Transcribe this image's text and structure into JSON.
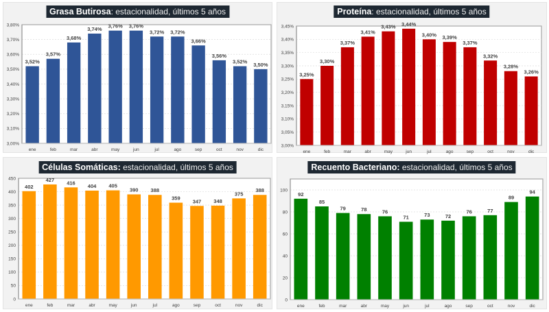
{
  "page": {
    "background": "#ffffff",
    "panel_background": "#f2f2f2",
    "title_background": "#1e2832"
  },
  "chart_data": [
    {
      "id": "grasa",
      "type": "bar",
      "title_bold": "Grasa Butirosa",
      "title_rest": ": estacionalidad, últimos 5 años",
      "categories": [
        "ene",
        "feb",
        "mar",
        "abr",
        "may",
        "jun",
        "jul",
        "ago",
        "sep",
        "oct",
        "nov",
        "dic"
      ],
      "values": [
        3.52,
        3.57,
        3.68,
        3.74,
        3.76,
        3.76,
        3.72,
        3.72,
        3.66,
        3.56,
        3.52,
        3.5
      ],
      "labels": [
        "3,52%",
        "3,57%",
        "3,68%",
        "3,74%",
        "3,76%",
        "3,76%",
        "3,72%",
        "3,72%",
        "3,66%",
        "3,56%",
        "3,52%",
        "3,50%"
      ],
      "yticks": [
        3.0,
        3.1,
        3.2,
        3.3,
        3.4,
        3.5,
        3.6,
        3.7,
        3.8
      ],
      "ytick_labels": [
        "3,00%",
        "3,10%",
        "3,20%",
        "3,30%",
        "3,40%",
        "3,50%",
        "3,60%",
        "3,70%",
        "3,80%"
      ],
      "ylim": [
        3.0,
        3.8
      ],
      "color": "#2f5597",
      "xlabel": "",
      "ylabel": "",
      "grid": true,
      "legend": "none"
    },
    {
      "id": "proteina",
      "type": "bar",
      "title_bold": "Proteína",
      "title_rest": ": estacionalidad, últimos 5 años",
      "categories": [
        "ene",
        "feb",
        "mar",
        "abr",
        "may",
        "jun",
        "jul",
        "ago",
        "sep",
        "oct",
        "nov",
        "dic"
      ],
      "values": [
        3.25,
        3.3,
        3.37,
        3.41,
        3.43,
        3.44,
        3.4,
        3.39,
        3.37,
        3.32,
        3.28,
        3.26
      ],
      "labels": [
        "3,25%",
        "3,30%",
        "3,37%",
        "3,41%",
        "3,43%",
        "3,44%",
        "3,40%",
        "3,39%",
        "3,37%",
        "3,32%",
        "3,28%",
        "3,26%"
      ],
      "yticks": [
        3.0,
        3.05,
        3.1,
        3.15,
        3.2,
        3.25,
        3.3,
        3.35,
        3.4,
        3.45
      ],
      "ytick_labels": [
        "3,00%",
        "3,05%",
        "3,10%",
        "3,15%",
        "3,20%",
        "3,25%",
        "3,30%",
        "3,35%",
        "3,40%",
        "3,45%"
      ],
      "ylim": [
        3.0,
        3.45
      ],
      "color": "#c00000",
      "xlabel": "",
      "ylabel": "",
      "grid": true,
      "legend": "none"
    },
    {
      "id": "celulas",
      "type": "bar",
      "title_bold": "Células Somáticas:",
      "title_rest": " estacionalidad, últimos 5 años",
      "categories": [
        "ene",
        "feb",
        "mar",
        "abr",
        "may",
        "jun",
        "jul",
        "ago",
        "sep",
        "oct",
        "nov",
        "dic"
      ],
      "values": [
        402,
        427,
        416,
        404,
        405,
        390,
        388,
        359,
        347,
        348,
        375,
        388
      ],
      "labels": [
        "402",
        "427",
        "416",
        "404",
        "405",
        "390",
        "388",
        "359",
        "347",
        "348",
        "375",
        "388"
      ],
      "yticks": [
        0,
        50,
        100,
        150,
        200,
        250,
        300,
        350,
        400,
        450
      ],
      "ytick_labels": [
        "0",
        "50",
        "100",
        "150",
        "200",
        "250",
        "300",
        "350",
        "400",
        "450"
      ],
      "ylim": [
        0,
        450
      ],
      "color": "#ff9900",
      "xlabel": "",
      "ylabel": "",
      "grid": true,
      "legend": "none"
    },
    {
      "id": "bacterias",
      "type": "bar",
      "title_bold": "Recuento Bacteriano:",
      "title_rest": " estacionalidad, últimos 5 años",
      "categories": [
        "ene",
        "feb",
        "mar",
        "abr",
        "may",
        "jun",
        "jul",
        "ago",
        "sep",
        "oct",
        "nov",
        "dic"
      ],
      "values": [
        92,
        85,
        79,
        78,
        76,
        71,
        73,
        72,
        76,
        77,
        89,
        94
      ],
      "labels": [
        "92",
        "85",
        "79",
        "78",
        "76",
        "71",
        "73",
        "72",
        "76",
        "77",
        "89",
        "94"
      ],
      "yticks": [
        0,
        20,
        40,
        60,
        80,
        100
      ],
      "ytick_labels": [
        "0",
        "20",
        "40",
        "60",
        "80",
        "100"
      ],
      "ylim": [
        0,
        110
      ],
      "color": "#008000",
      "xlabel": "",
      "ylabel": "",
      "grid": true,
      "legend": "none"
    }
  ]
}
